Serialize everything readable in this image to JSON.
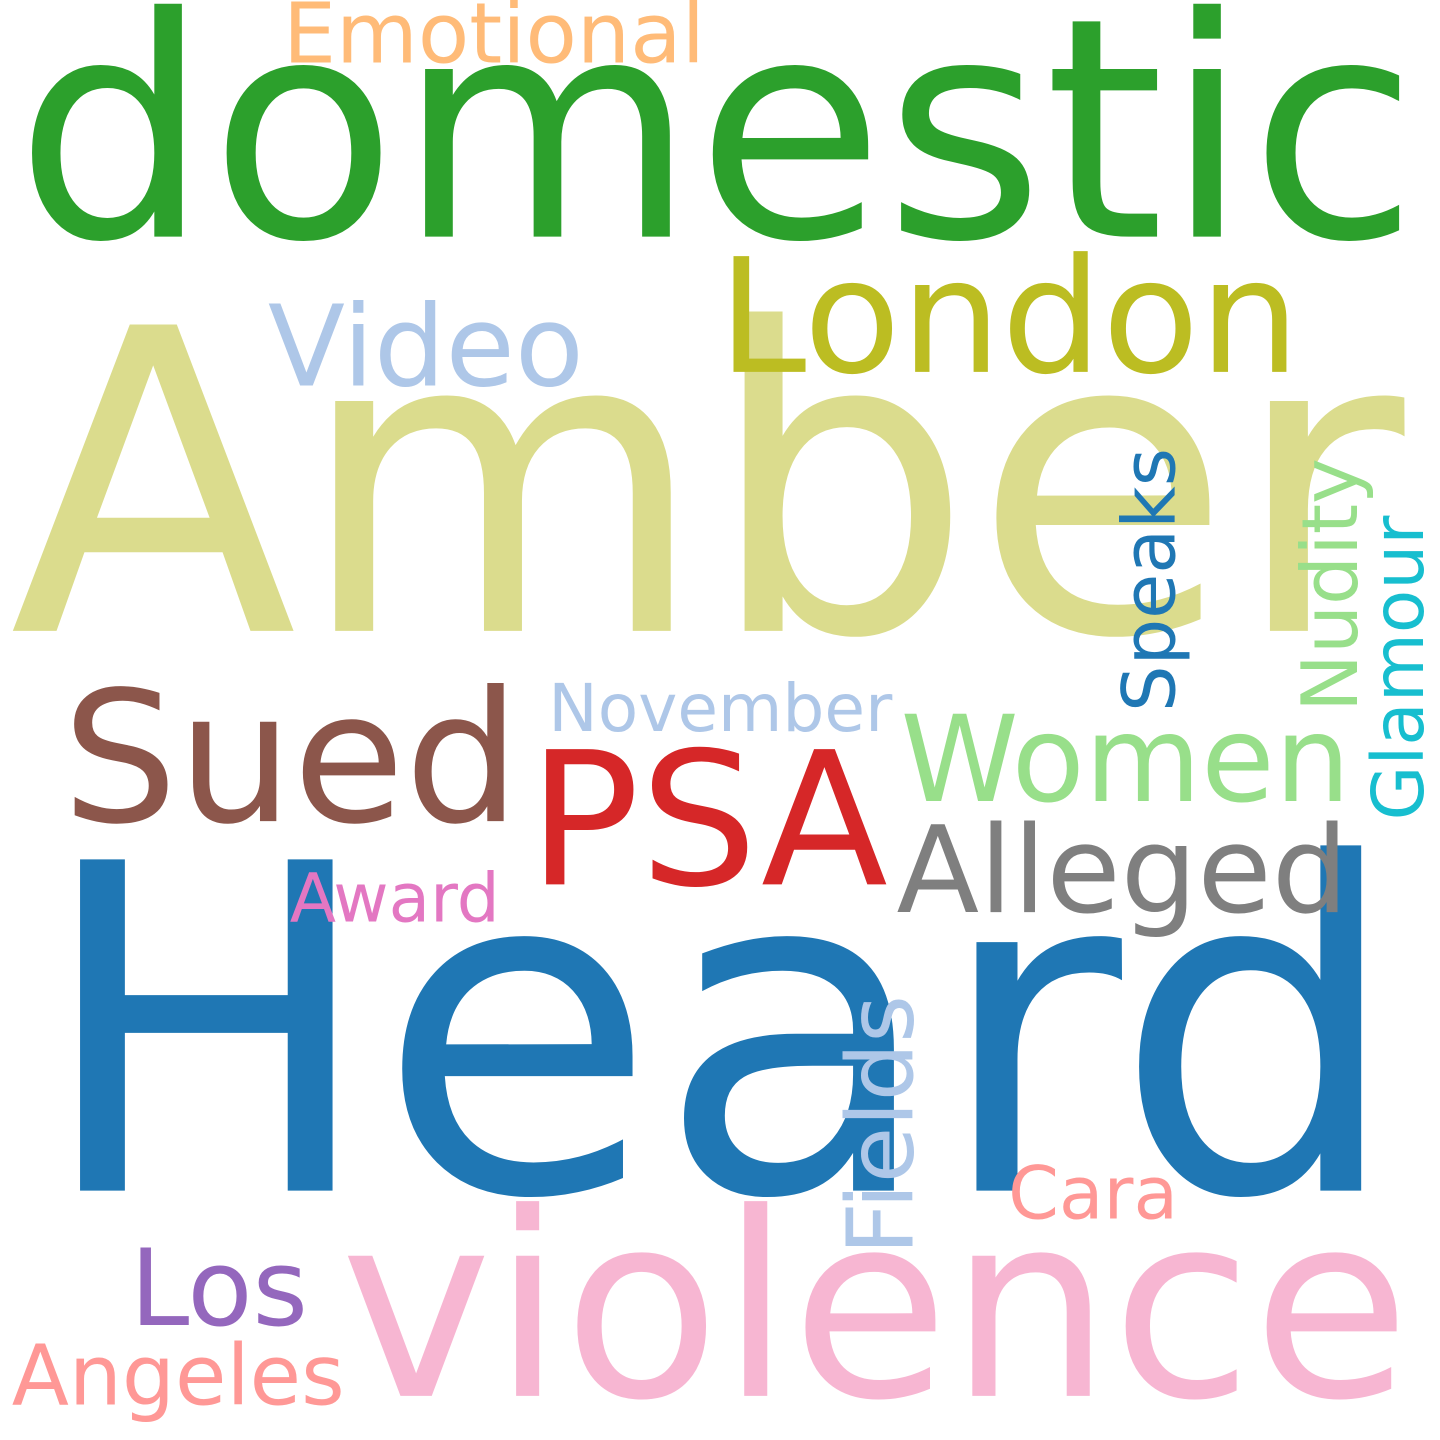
{
  "words": [
    {
      "id": "amber",
      "text": "Amber",
      "color": "#dbdc8d",
      "vertical": false
    },
    {
      "id": "heard",
      "text": "Heard",
      "color": "#1f77b4",
      "vertical": false
    },
    {
      "id": "domestic",
      "text": "domestic",
      "color": "#2ca02c",
      "vertical": false
    },
    {
      "id": "violence",
      "text": "violence",
      "color": "#f7b6d2",
      "vertical": false
    },
    {
      "id": "london",
      "text": "London",
      "color": "#bcbd22",
      "vertical": false
    },
    {
      "id": "sued",
      "text": "Sued",
      "color": "#8c564b",
      "vertical": false
    },
    {
      "id": "psa",
      "text": "PSA",
      "color": "#d62728",
      "vertical": false
    },
    {
      "id": "women",
      "text": "Women",
      "color": "#98df8a",
      "vertical": false
    },
    {
      "id": "alleged",
      "text": "Alleged",
      "color": "#7f7f7f",
      "vertical": false
    },
    {
      "id": "video",
      "text": "Video",
      "color": "#aec7e8",
      "vertical": false
    },
    {
      "id": "emotional",
      "text": "Emotional",
      "color": "#ffbb78",
      "vertical": false
    },
    {
      "id": "november",
      "text": "November",
      "color": "#aec7e8",
      "vertical": false
    },
    {
      "id": "speaks",
      "text": "Speaks",
      "color": "#1f77b4",
      "vertical": true
    },
    {
      "id": "nudity",
      "text": "Nudity",
      "color": "#98df8a",
      "vertical": true
    },
    {
      "id": "glamour",
      "text": "Glamour",
      "color": "#17becf",
      "vertical": true
    },
    {
      "id": "award",
      "text": "Award",
      "color": "#e377c2",
      "vertical": false
    },
    {
      "id": "fields",
      "text": "Fields",
      "color": "#aec7e8",
      "vertical": true
    },
    {
      "id": "cara",
      "text": "Cara",
      "color": "#ff9896",
      "vertical": false
    },
    {
      "id": "los",
      "text": "Los",
      "color": "#9467bd",
      "vertical": false
    },
    {
      "id": "angeles",
      "text": "Angeles",
      "color": "#ff9896",
      "vertical": false
    }
  ]
}
